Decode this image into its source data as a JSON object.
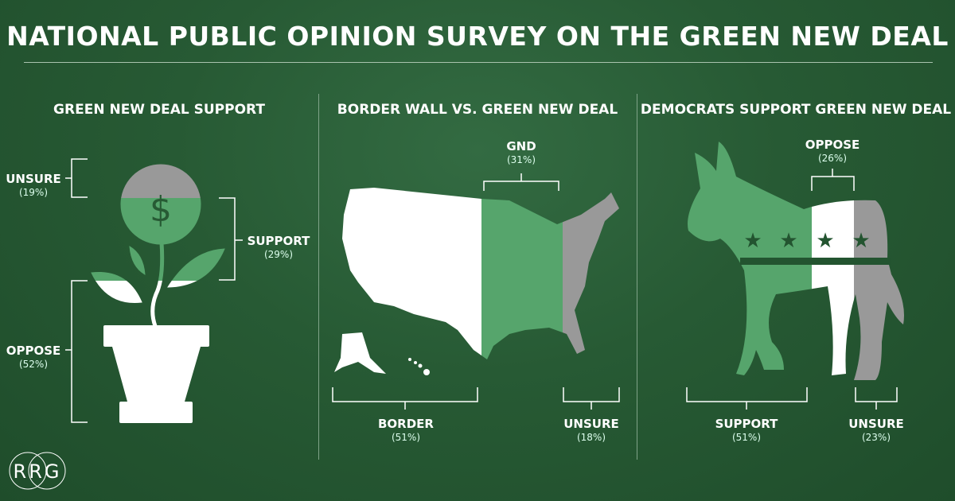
{
  "title": "NATIONAL PUBLIC OPINION SURVEY ON THE GREEN NEW DEAL",
  "colors": {
    "background": "#275a34",
    "support_green": "#56a56c",
    "white": "#ffffff",
    "gray": "#999999"
  },
  "logo_text": "RRG",
  "chart_data": [
    {
      "type": "pie",
      "title": "GREEN NEW DEAL SUPPORT",
      "categories": [
        "UNSURE",
        "SUPPORT",
        "OPPOSE"
      ],
      "values": [
        19,
        29,
        52
      ],
      "labels": [
        "(19%)",
        "(29%)",
        "(52%)"
      ],
      "icon": "money-plant"
    },
    {
      "type": "bar",
      "title": "BORDER WALL VS. GREEN NEW DEAL",
      "categories": [
        "BORDER",
        "GND",
        "UNSURE"
      ],
      "values": [
        51,
        31,
        18
      ],
      "labels": [
        "(51%)",
        "(31%)",
        "(18%)"
      ],
      "icon": "us-map"
    },
    {
      "type": "bar",
      "title": "DEMOCRATS SUPPORT GREEN NEW DEAL",
      "categories": [
        "SUPPORT",
        "OPPOSE",
        "UNSURE"
      ],
      "values": [
        51,
        26,
        23
      ],
      "labels": [
        "(51%)",
        "(26%)",
        "(23%)"
      ],
      "icon": "democrat-donkey"
    }
  ]
}
